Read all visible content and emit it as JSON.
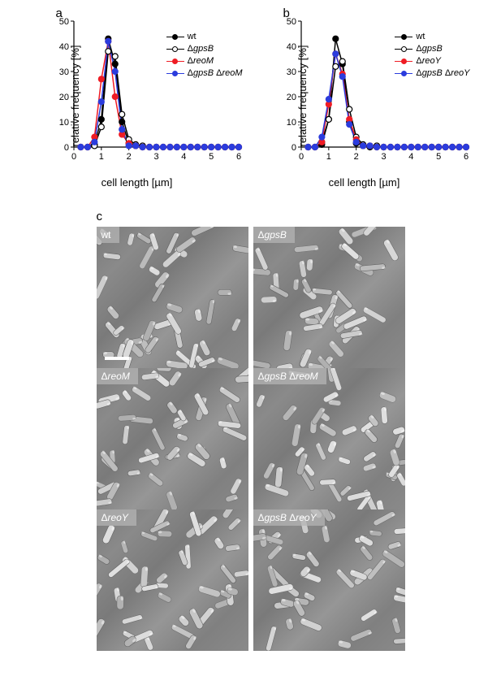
{
  "panel_a": {
    "label": "a",
    "type": "line-scatter",
    "xlabel": "cell length [µm]",
    "ylabel": "relative frequency [%]",
    "xlim": [
      0,
      6
    ],
    "ylim": [
      0,
      50
    ],
    "xtick_step": 1,
    "ytick_step": 10,
    "x_values": [
      0.25,
      0.5,
      0.75,
      1.0,
      1.25,
      1.5,
      1.75,
      2.0,
      2.25,
      2.5,
      2.75,
      3.0,
      3.25,
      3.5,
      3.75,
      4.0,
      4.25,
      4.5,
      4.75,
      5.0,
      5.25,
      5.5,
      5.75,
      6.0
    ],
    "series": [
      {
        "name": "wt",
        "label_html": "wt",
        "color": "#000000",
        "fill": "#000000",
        "stroke": "#000000",
        "y": [
          0,
          0,
          1,
          11,
          43,
          33,
          10,
          1.5,
          0.5,
          0,
          0,
          0,
          0,
          0,
          0,
          0,
          0,
          0,
          0,
          0,
          0,
          0,
          0,
          0
        ]
      },
      {
        "name": "dgpsB",
        "label_html": "Δ<em>gpsB</em>",
        "color": "#000000",
        "fill": "#ffffff",
        "stroke": "#000000",
        "y": [
          0,
          0,
          0.5,
          8,
          38,
          36,
          13,
          3,
          1,
          0.5,
          0,
          0,
          0,
          0,
          0,
          0,
          0,
          0,
          0,
          0,
          0,
          0,
          0,
          0
        ]
      },
      {
        "name": "dreoM",
        "label_html": "Δ<em>reoM</em>",
        "color": "#ef1c24",
        "fill": "#ef1c24",
        "stroke": "#ef1c24",
        "y": [
          0,
          0,
          4,
          27,
          42,
          20,
          5,
          1.5,
          0.5,
          0,
          0,
          0,
          0,
          0,
          0,
          0,
          0,
          0,
          0,
          0,
          0,
          0,
          0,
          0
        ]
      },
      {
        "name": "dgpsBdreoM",
        "label_html": "Δ<em>gpsB</em> Δ<em>reoM</em>",
        "color": "#2b3cdd",
        "fill": "#2b3cdd",
        "stroke": "#2b3cdd",
        "y": [
          0,
          0,
          2,
          18,
          42,
          30,
          7,
          0.5,
          0.5,
          0,
          0,
          0,
          0,
          0,
          0,
          0,
          0,
          0,
          0,
          0,
          0,
          0,
          0,
          0
        ]
      }
    ],
    "marker_radius": 3.5,
    "line_width": 1.5,
    "axis_color": "#000000",
    "background_color": "#ffffff",
    "tick_fontsize": 11,
    "label_fontsize": 13
  },
  "panel_b": {
    "label": "b",
    "type": "line-scatter",
    "xlabel": "cell length [µm]",
    "ylabel": "relative frequency [%]",
    "xlim": [
      0,
      6
    ],
    "ylim": [
      0,
      50
    ],
    "xtick_step": 1,
    "ytick_step": 10,
    "x_values": [
      0.25,
      0.5,
      0.75,
      1.0,
      1.25,
      1.5,
      1.75,
      2.0,
      2.25,
      2.5,
      2.75,
      3.0,
      3.25,
      3.5,
      3.75,
      4.0,
      4.25,
      4.5,
      4.75,
      5.0,
      5.25,
      5.5,
      5.75,
      6.0
    ],
    "series": [
      {
        "name": "wt",
        "label_html": "wt",
        "color": "#000000",
        "fill": "#000000",
        "stroke": "#000000",
        "y": [
          0,
          0,
          1,
          11,
          43,
          33,
          10,
          1.5,
          0.5,
          0,
          0,
          0,
          0,
          0,
          0,
          0,
          0,
          0,
          0,
          0,
          0,
          0,
          0,
          0
        ]
      },
      {
        "name": "dgpsB",
        "label_html": "Δ<em>gpsB</em>",
        "color": "#000000",
        "fill": "#ffffff",
        "stroke": "#000000",
        "y": [
          0,
          0,
          2,
          11,
          32,
          34,
          15,
          4,
          1,
          0.5,
          0.5,
          0,
          0,
          0,
          0,
          0,
          0,
          0,
          0,
          0,
          0,
          0,
          0,
          0
        ]
      },
      {
        "name": "dreoY",
        "label_html": "Δ<em>reoY</em>",
        "color": "#ef1c24",
        "fill": "#ef1c24",
        "stroke": "#ef1c24",
        "y": [
          0,
          0,
          2,
          17,
          37,
          29,
          11,
          3,
          0.5,
          0.5,
          0,
          0,
          0,
          0,
          0,
          0,
          0,
          0,
          0,
          0,
          0,
          0,
          0,
          0
        ]
      },
      {
        "name": "dgpsBdreoY",
        "label_html": "Δ<em>gpsB</em> Δ<em>reoY</em>",
        "color": "#2b3cdd",
        "fill": "#2b3cdd",
        "stroke": "#2b3cdd",
        "y": [
          0,
          0,
          4,
          19,
          37,
          28,
          9,
          2,
          0.5,
          0.5,
          0,
          0,
          0,
          0,
          0,
          0,
          0,
          0,
          0,
          0,
          0,
          0,
          0,
          0
        ]
      }
    ],
    "marker_radius": 3.5,
    "line_width": 1.5,
    "axis_color": "#000000",
    "background_color": "#ffffff",
    "tick_fontsize": 11,
    "label_fontsize": 13
  },
  "panel_c": {
    "label": "c",
    "images": [
      {
        "label_html": "wt",
        "has_scale": true
      },
      {
        "label_html": "Δ<em>gpsB</em>",
        "has_scale": false
      },
      {
        "label_html": "Δ<em>reoM</em>",
        "has_scale": false
      },
      {
        "label_html": "Δ<em>gpsB</em> Δ<em>reoM</em>",
        "has_scale": false
      },
      {
        "label_html": "Δ<em>reoY</em>",
        "has_scale": false
      },
      {
        "label_html": "Δ<em>gpsB</em> Δ<em>reoY</em>",
        "has_scale": false
      }
    ],
    "label_fontsize": 12,
    "label_color": "#ffffff"
  },
  "colors": {
    "black": "#000000",
    "white": "#ffffff",
    "red": "#ef1c24",
    "blue": "#2b3cdd"
  }
}
